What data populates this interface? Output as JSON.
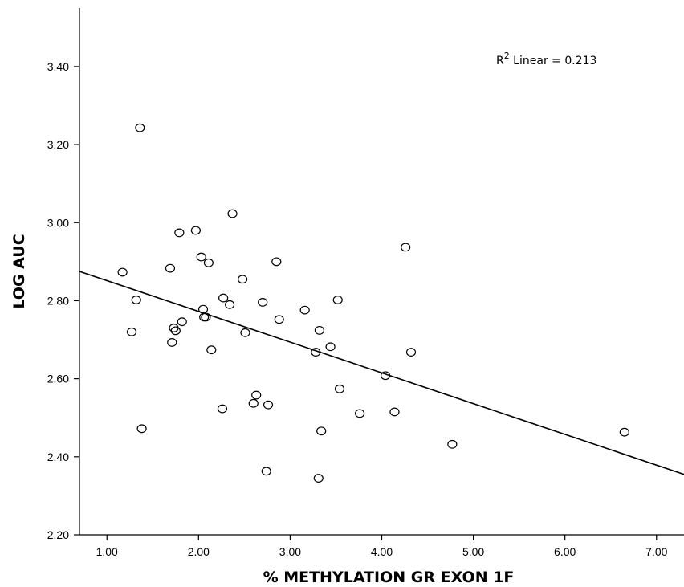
{
  "chart_data": {
    "type": "scatter",
    "title": "",
    "xlabel": "% METHYLATION GR EXON 1F",
    "ylabel": "LOG AUC",
    "xlim": [
      0.7,
      7.3
    ],
    "ylim": [
      2.2,
      3.55
    ],
    "x_ticks": [
      "1.00",
      "2.00",
      "3.00",
      "4.00",
      "5.00",
      "6.00",
      "7.00"
    ],
    "y_ticks": [
      "2.20",
      "2.40",
      "2.60",
      "2.80",
      "3.00",
      "3.20",
      "3.40"
    ],
    "grid": false,
    "annotation": {
      "prefix": "R",
      "superscript": "2",
      "text": " Linear = 0.213"
    },
    "fit_line": {
      "x": [
        0.7,
        7.3
      ],
      "y": [
        2.875,
        2.355
      ]
    },
    "series": [
      {
        "marker": "open-circle",
        "points": [
          {
            "x": 1.17,
            "y": 2.873
          },
          {
            "x": 1.27,
            "y": 2.72
          },
          {
            "x": 1.32,
            "y": 2.802
          },
          {
            "x": 1.36,
            "y": 3.243
          },
          {
            "x": 1.38,
            "y": 2.472
          },
          {
            "x": 1.69,
            "y": 2.883
          },
          {
            "x": 1.71,
            "y": 2.693
          },
          {
            "x": 1.73,
            "y": 2.73
          },
          {
            "x": 1.75,
            "y": 2.723
          },
          {
            "x": 1.79,
            "y": 2.974
          },
          {
            "x": 1.82,
            "y": 2.746
          },
          {
            "x": 1.97,
            "y": 2.98
          },
          {
            "x": 2.03,
            "y": 2.912
          },
          {
            "x": 2.05,
            "y": 2.778
          },
          {
            "x": 2.06,
            "y": 2.758
          },
          {
            "x": 2.08,
            "y": 2.758
          },
          {
            "x": 2.11,
            "y": 2.897
          },
          {
            "x": 2.14,
            "y": 2.674
          },
          {
            "x": 2.26,
            "y": 2.523
          },
          {
            "x": 2.27,
            "y": 2.807
          },
          {
            "x": 2.34,
            "y": 2.79
          },
          {
            "x": 2.37,
            "y": 3.023
          },
          {
            "x": 2.48,
            "y": 2.855
          },
          {
            "x": 2.51,
            "y": 2.718
          },
          {
            "x": 2.6,
            "y": 2.537
          },
          {
            "x": 2.63,
            "y": 2.558
          },
          {
            "x": 2.7,
            "y": 2.796
          },
          {
            "x": 2.74,
            "y": 2.363
          },
          {
            "x": 2.76,
            "y": 2.533
          },
          {
            "x": 2.85,
            "y": 2.9
          },
          {
            "x": 2.88,
            "y": 2.752
          },
          {
            "x": 3.16,
            "y": 2.776
          },
          {
            "x": 3.28,
            "y": 2.668
          },
          {
            "x": 3.31,
            "y": 2.345
          },
          {
            "x": 3.32,
            "y": 2.724
          },
          {
            "x": 3.34,
            "y": 2.466
          },
          {
            "x": 3.44,
            "y": 2.682
          },
          {
            "x": 3.52,
            "y": 2.802
          },
          {
            "x": 3.54,
            "y": 2.574
          },
          {
            "x": 3.76,
            "y": 2.511
          },
          {
            "x": 4.04,
            "y": 2.608
          },
          {
            "x": 4.14,
            "y": 2.515
          },
          {
            "x": 4.26,
            "y": 2.937
          },
          {
            "x": 4.32,
            "y": 2.668
          },
          {
            "x": 4.77,
            "y": 2.432
          },
          {
            "x": 6.65,
            "y": 2.463
          }
        ]
      }
    ]
  }
}
